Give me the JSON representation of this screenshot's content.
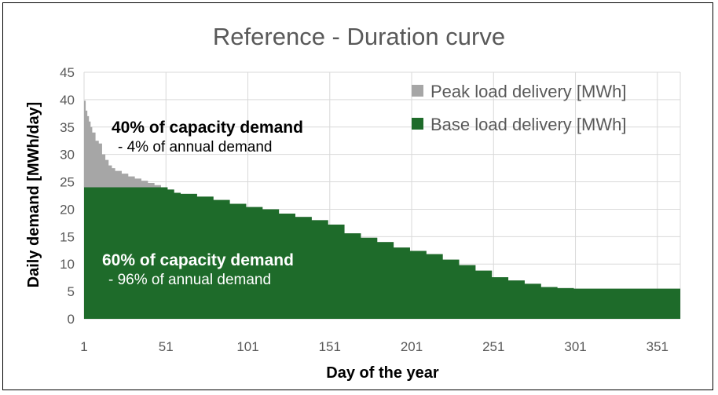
{
  "chart_data": {
    "type": "area",
    "title": "Reference - Duration curve",
    "xlabel": "Day of the year",
    "ylabel": "Daily demand [MWh/day]",
    "xlim": [
      1,
      365
    ],
    "ylim": [
      0,
      45
    ],
    "x_ticks": [
      1,
      51,
      101,
      151,
      201,
      251,
      301,
      351
    ],
    "y_ticks": [
      0,
      5,
      10,
      15,
      20,
      25,
      30,
      35,
      40,
      45
    ],
    "grid": true,
    "legend_position": "top-right",
    "base_cap": 24,
    "series": [
      {
        "name": "Peak load delivery [MWh]",
        "color": "#A6A6A6",
        "note": "portion of the duration curve above base_cap"
      },
      {
        "name": "Base load delivery [MWh]",
        "color": "#1E6B2A",
        "note": "portion of the duration curve up to base_cap"
      }
    ],
    "duration_curve": {
      "x": [
        1,
        2,
        3,
        4,
        5,
        6,
        8,
        10,
        12,
        14,
        16,
        18,
        20,
        24,
        28,
        32,
        36,
        40,
        44,
        48,
        52,
        56,
        60,
        70,
        80,
        90,
        100,
        110,
        120,
        130,
        140,
        150,
        160,
        170,
        180,
        190,
        200,
        210,
        220,
        230,
        240,
        250,
        260,
        270,
        280,
        290,
        300,
        320,
        340,
        365
      ],
      "y": [
        39.8,
        38.0,
        37.0,
        36.0,
        35.0,
        34.0,
        32.5,
        32.0,
        30.0,
        29.0,
        28.0,
        27.5,
        27.0,
        26.5,
        26.0,
        25.6,
        25.2,
        24.8,
        24.4,
        24.0,
        23.6,
        23.0,
        22.8,
        22.3,
        21.7,
        21.0,
        20.4,
        20.0,
        19.2,
        18.6,
        18.0,
        17.2,
        15.6,
        14.8,
        14.0,
        13.0,
        12.4,
        11.8,
        10.8,
        9.8,
        8.8,
        7.6,
        7.0,
        6.4,
        5.8,
        5.6,
        5.5,
        5.5,
        5.5,
        5.5
      ]
    },
    "annotations": [
      {
        "bold": "40% of capacity demand",
        "text": "- 4% of annual demand",
        "color": "#000000"
      },
      {
        "bold": "60% of capacity demand",
        "text": "- 96% of annual demand",
        "color": "#ffffff"
      }
    ]
  }
}
